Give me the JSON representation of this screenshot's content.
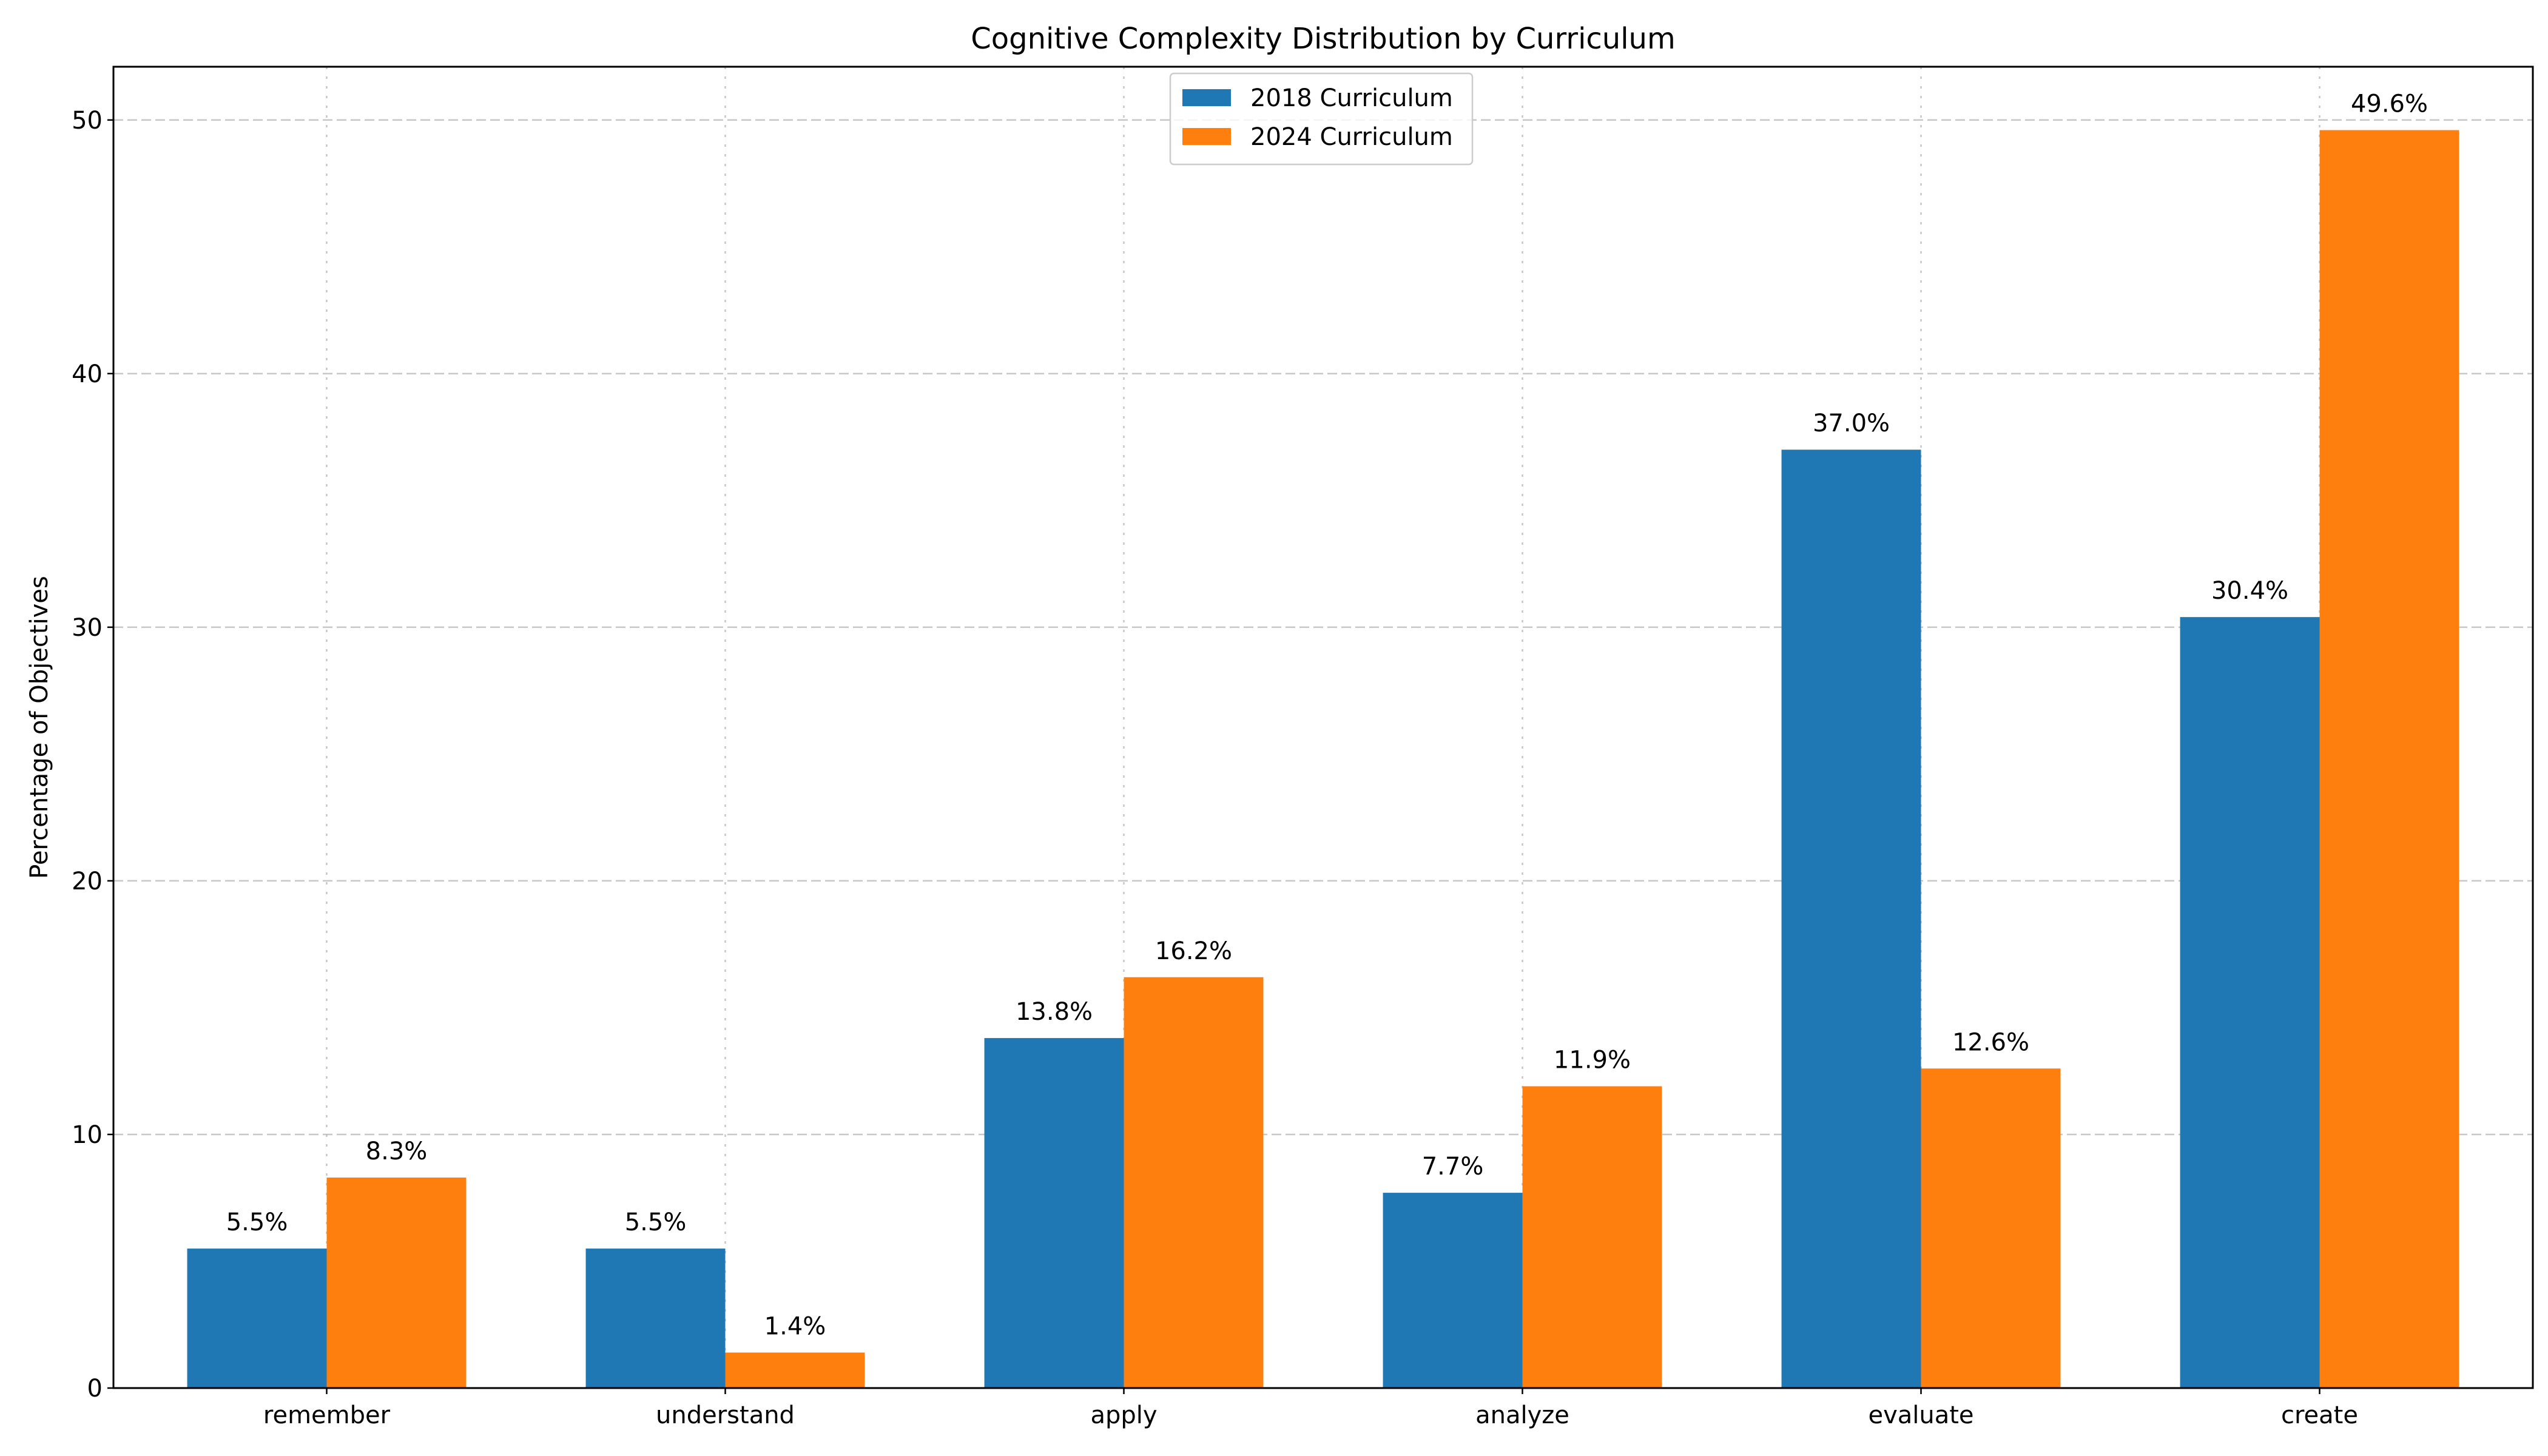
{
  "chart_data": {
    "type": "bar",
    "title": "Cognitive Complexity Distribution by Curriculum",
    "xlabel": "",
    "ylabel": "Percentage of Objectives",
    "categories": [
      "remember",
      "understand",
      "apply",
      "analyze",
      "evaluate",
      "create"
    ],
    "series": [
      {
        "name": "2018 Curriculum",
        "color": "#1f77b4",
        "values": [
          5.5,
          5.5,
          13.8,
          7.7,
          37.0,
          30.4
        ],
        "labels": [
          "5.5%",
          "5.5%",
          "13.8%",
          "7.7%",
          "37.0%",
          "30.4%"
        ]
      },
      {
        "name": "2024 Curriculum",
        "color": "#ff7f0e",
        "values": [
          8.3,
          1.4,
          16.2,
          11.9,
          12.6,
          49.6
        ],
        "labels": [
          "8.3%",
          "1.4%",
          "16.2%",
          "11.9%",
          "12.6%",
          "49.6%"
        ]
      }
    ],
    "ylim": [
      0,
      52.1
    ],
    "yticks": [
      0,
      10,
      20,
      30,
      40,
      50
    ],
    "grid": true,
    "legend_position": "top-center"
  }
}
